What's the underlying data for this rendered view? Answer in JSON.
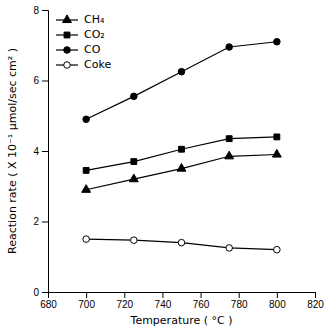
{
  "chart_data": {
    "type": "line",
    "x": [
      700,
      725,
      750,
      775,
      800
    ],
    "series": [
      {
        "name": "CH₄",
        "color": "black",
        "marker": "triangle",
        "values": [
          2.9,
          3.2,
          3.5,
          3.85,
          3.9
        ]
      },
      {
        "name": "CO₂",
        "color": "black",
        "marker": "square",
        "values": [
          3.45,
          3.7,
          4.05,
          4.35,
          4.4
        ]
      },
      {
        "name": "CO",
        "color": "black",
        "marker": "circle",
        "values": [
          4.9,
          5.55,
          6.25,
          6.95,
          7.1
        ]
      },
      {
        "name": "Coke",
        "color": "black",
        "marker": "open-circle",
        "values": [
          1.5,
          1.47,
          1.4,
          1.25,
          1.2
        ]
      }
    ],
    "xlabel": "Temperature ( °C )",
    "ylabel": "Reaction rate ( X 10⁻¹ μmol/sec cm² )",
    "xlim": [
      680,
      820
    ],
    "ylim": [
      0,
      8
    ],
    "xticks": [
      680,
      700,
      720,
      740,
      760,
      780,
      800,
      820
    ],
    "yticks": [
      0,
      2,
      4,
      6,
      8
    ],
    "legend": "upper-left",
    "grid": false
  }
}
